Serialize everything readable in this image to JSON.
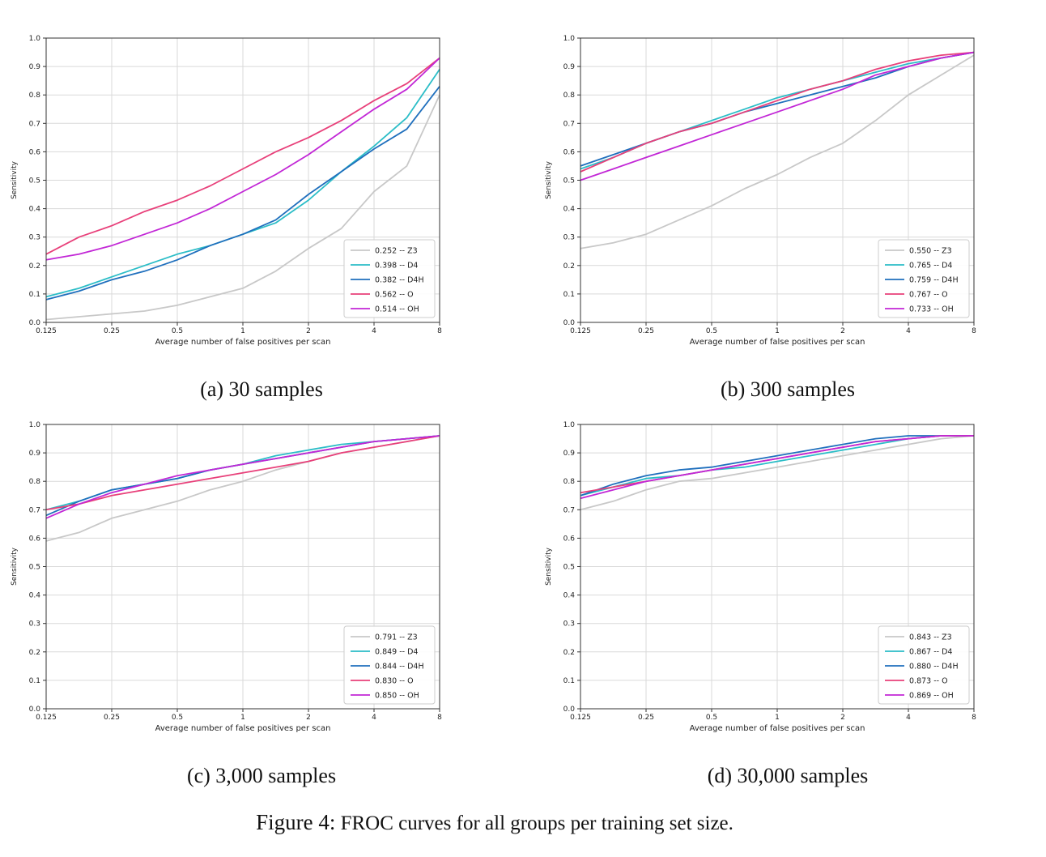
{
  "figure": {
    "caption_label": "Figure 4:",
    "caption_text": " FROC curves for all groups per training set size."
  },
  "chart_data": [
    {
      "panel_caption": "(a) 30 samples",
      "type": "line",
      "xlabel": "Average number of false positives per scan",
      "ylabel": "Sensitivity",
      "x_scale": "log2",
      "xlim": [
        0.125,
        8
      ],
      "ylim": [
        0.0,
        1.0
      ],
      "xticks": [
        "0.125",
        "0.25",
        "0.5",
        "1",
        "2",
        "4",
        "8"
      ],
      "yticks": [
        "0.0",
        "0.1",
        "0.2",
        "0.3",
        "0.4",
        "0.5",
        "0.6",
        "0.7",
        "0.8",
        "0.9",
        "1.0"
      ],
      "grid": true,
      "legend_position": "lower-right",
      "series": [
        {
          "name": "0.252 -- Z3",
          "color": "#c8c8c8",
          "x": [
            0.125,
            0.177,
            0.25,
            0.354,
            0.5,
            0.707,
            1,
            1.414,
            2,
            2.828,
            4,
            5.657,
            8
          ],
          "y": [
            0.01,
            0.02,
            0.03,
            0.04,
            0.06,
            0.09,
            0.12,
            0.18,
            0.26,
            0.33,
            0.46,
            0.55,
            0.8
          ]
        },
        {
          "name": "0.398 -- D4",
          "color": "#2bbdc7",
          "x": [
            0.125,
            0.177,
            0.25,
            0.354,
            0.5,
            0.707,
            1,
            1.414,
            2,
            2.828,
            4,
            5.657,
            8
          ],
          "y": [
            0.09,
            0.12,
            0.16,
            0.2,
            0.24,
            0.27,
            0.31,
            0.35,
            0.43,
            0.53,
            0.62,
            0.72,
            0.89
          ]
        },
        {
          "name": "0.382 -- D4H",
          "color": "#1f6fbd",
          "x": [
            0.125,
            0.177,
            0.25,
            0.354,
            0.5,
            0.707,
            1,
            1.414,
            2,
            2.828,
            4,
            5.657,
            8
          ],
          "y": [
            0.08,
            0.11,
            0.15,
            0.18,
            0.22,
            0.27,
            0.31,
            0.36,
            0.45,
            0.53,
            0.61,
            0.68,
            0.83
          ]
        },
        {
          "name": "0.562 -- O",
          "color": "#e8407a",
          "x": [
            0.125,
            0.177,
            0.25,
            0.354,
            0.5,
            0.707,
            1,
            1.414,
            2,
            2.828,
            4,
            5.657,
            8
          ],
          "y": [
            0.24,
            0.3,
            0.34,
            0.39,
            0.43,
            0.48,
            0.54,
            0.6,
            0.65,
            0.71,
            0.78,
            0.84,
            0.93
          ]
        },
        {
          "name": "0.514 -- OH",
          "color": "#c227d6",
          "x": [
            0.125,
            0.177,
            0.25,
            0.354,
            0.5,
            0.707,
            1,
            1.414,
            2,
            2.828,
            4,
            5.657,
            8
          ],
          "y": [
            0.22,
            0.24,
            0.27,
            0.31,
            0.35,
            0.4,
            0.46,
            0.52,
            0.59,
            0.67,
            0.75,
            0.82,
            0.93
          ]
        }
      ]
    },
    {
      "panel_caption": "(b) 300 samples",
      "type": "line",
      "xlabel": "Average number of false positives per scan",
      "ylabel": "Sensitivity",
      "x_scale": "log2",
      "xlim": [
        0.125,
        8
      ],
      "ylim": [
        0.0,
        1.0
      ],
      "xticks": [
        "0.125",
        "0.25",
        "0.5",
        "1",
        "2",
        "4",
        "8"
      ],
      "yticks": [
        "0.0",
        "0.1",
        "0.2",
        "0.3",
        "0.4",
        "0.5",
        "0.6",
        "0.7",
        "0.8",
        "0.9",
        "1.0"
      ],
      "grid": true,
      "legend_position": "lower-right",
      "series": [
        {
          "name": "0.550 -- Z3",
          "color": "#c8c8c8",
          "x": [
            0.125,
            0.177,
            0.25,
            0.354,
            0.5,
            0.707,
            1,
            1.414,
            2,
            2.828,
            4,
            5.657,
            8
          ],
          "y": [
            0.26,
            0.28,
            0.31,
            0.36,
            0.41,
            0.47,
            0.52,
            0.58,
            0.63,
            0.71,
            0.8,
            0.87,
            0.94
          ]
        },
        {
          "name": "0.765 -- D4",
          "color": "#2bbdc7",
          "x": [
            0.125,
            0.177,
            0.25,
            0.354,
            0.5,
            0.707,
            1,
            1.414,
            2,
            2.828,
            4,
            5.657,
            8
          ],
          "y": [
            0.54,
            0.58,
            0.63,
            0.67,
            0.71,
            0.75,
            0.79,
            0.82,
            0.85,
            0.88,
            0.91,
            0.93,
            0.95
          ]
        },
        {
          "name": "0.759 -- D4H",
          "color": "#1f6fbd",
          "x": [
            0.125,
            0.177,
            0.25,
            0.354,
            0.5,
            0.707,
            1,
            1.414,
            2,
            2.828,
            4,
            5.657,
            8
          ],
          "y": [
            0.55,
            0.59,
            0.63,
            0.67,
            0.7,
            0.74,
            0.77,
            0.8,
            0.83,
            0.86,
            0.9,
            0.93,
            0.95
          ]
        },
        {
          "name": "0.767 -- O",
          "color": "#e8407a",
          "x": [
            0.125,
            0.177,
            0.25,
            0.354,
            0.5,
            0.707,
            1,
            1.414,
            2,
            2.828,
            4,
            5.657,
            8
          ],
          "y": [
            0.53,
            0.58,
            0.63,
            0.67,
            0.7,
            0.74,
            0.78,
            0.82,
            0.85,
            0.89,
            0.92,
            0.94,
            0.95
          ]
        },
        {
          "name": "0.733 -- OH",
          "color": "#c227d6",
          "x": [
            0.125,
            0.177,
            0.25,
            0.354,
            0.5,
            0.707,
            1,
            1.414,
            2,
            2.828,
            4,
            5.657,
            8
          ],
          "y": [
            0.5,
            0.54,
            0.58,
            0.62,
            0.66,
            0.7,
            0.74,
            0.78,
            0.82,
            0.87,
            0.9,
            0.93,
            0.95
          ]
        }
      ]
    },
    {
      "panel_caption": "(c) 3,000 samples",
      "type": "line",
      "xlabel": "Average number of false positives per scan",
      "ylabel": "Sensitivity",
      "x_scale": "log2",
      "xlim": [
        0.125,
        8
      ],
      "ylim": [
        0.0,
        1.0
      ],
      "xticks": [
        "0.125",
        "0.25",
        "0.5",
        "1",
        "2",
        "4",
        "8"
      ],
      "yticks": [
        "0.0",
        "0.1",
        "0.2",
        "0.3",
        "0.4",
        "0.5",
        "0.6",
        "0.7",
        "0.8",
        "0.9",
        "1.0"
      ],
      "grid": true,
      "legend_position": "lower-right",
      "series": [
        {
          "name": "0.791 -- Z3",
          "color": "#c8c8c8",
          "x": [
            0.125,
            0.177,
            0.25,
            0.354,
            0.5,
            0.707,
            1,
            1.414,
            2,
            2.828,
            4,
            5.657,
            8
          ],
          "y": [
            0.59,
            0.62,
            0.67,
            0.7,
            0.73,
            0.77,
            0.8,
            0.84,
            0.87,
            0.9,
            0.92,
            0.94,
            0.96
          ]
        },
        {
          "name": "0.849 -- D4",
          "color": "#2bbdc7",
          "x": [
            0.125,
            0.177,
            0.25,
            0.354,
            0.5,
            0.707,
            1,
            1.414,
            2,
            2.828,
            4,
            5.657,
            8
          ],
          "y": [
            0.7,
            0.73,
            0.77,
            0.79,
            0.81,
            0.84,
            0.86,
            0.89,
            0.91,
            0.93,
            0.94,
            0.95,
            0.96
          ]
        },
        {
          "name": "0.844 -- D4H",
          "color": "#1f6fbd",
          "x": [
            0.125,
            0.177,
            0.25,
            0.354,
            0.5,
            0.707,
            1,
            1.414,
            2,
            2.828,
            4,
            5.657,
            8
          ],
          "y": [
            0.68,
            0.73,
            0.77,
            0.79,
            0.81,
            0.84,
            0.86,
            0.88,
            0.9,
            0.92,
            0.94,
            0.95,
            0.96
          ]
        },
        {
          "name": "0.830 -- O",
          "color": "#e8407a",
          "x": [
            0.125,
            0.177,
            0.25,
            0.354,
            0.5,
            0.707,
            1,
            1.414,
            2,
            2.828,
            4,
            5.657,
            8
          ],
          "y": [
            0.7,
            0.72,
            0.75,
            0.77,
            0.79,
            0.81,
            0.83,
            0.85,
            0.87,
            0.9,
            0.92,
            0.94,
            0.96
          ]
        },
        {
          "name": "0.850 -- OH",
          "color": "#c227d6",
          "x": [
            0.125,
            0.177,
            0.25,
            0.354,
            0.5,
            0.707,
            1,
            1.414,
            2,
            2.828,
            4,
            5.657,
            8
          ],
          "y": [
            0.67,
            0.72,
            0.76,
            0.79,
            0.82,
            0.84,
            0.86,
            0.88,
            0.9,
            0.92,
            0.94,
            0.95,
            0.96
          ]
        }
      ]
    },
    {
      "panel_caption": "(d) 30,000 samples",
      "type": "line",
      "xlabel": "Average number of false positives per scan",
      "ylabel": "Sensitivity",
      "x_scale": "log2",
      "xlim": [
        0.125,
        8
      ],
      "ylim": [
        0.0,
        1.0
      ],
      "xticks": [
        "0.125",
        "0.25",
        "0.5",
        "1",
        "2",
        "4",
        "8"
      ],
      "yticks": [
        "0.0",
        "0.1",
        "0.2",
        "0.3",
        "0.4",
        "0.5",
        "0.6",
        "0.7",
        "0.8",
        "0.9",
        "1.0"
      ],
      "grid": true,
      "legend_position": "lower-right",
      "series": [
        {
          "name": "0.843 -- Z3",
          "color": "#c8c8c8",
          "x": [
            0.125,
            0.177,
            0.25,
            0.354,
            0.5,
            0.707,
            1,
            1.414,
            2,
            2.828,
            4,
            5.657,
            8
          ],
          "y": [
            0.7,
            0.73,
            0.77,
            0.8,
            0.81,
            0.83,
            0.85,
            0.87,
            0.89,
            0.91,
            0.93,
            0.95,
            0.96
          ]
        },
        {
          "name": "0.867 -- D4",
          "color": "#2bbdc7",
          "x": [
            0.125,
            0.177,
            0.25,
            0.354,
            0.5,
            0.707,
            1,
            1.414,
            2,
            2.828,
            4,
            5.657,
            8
          ],
          "y": [
            0.75,
            0.78,
            0.81,
            0.82,
            0.84,
            0.85,
            0.87,
            0.89,
            0.91,
            0.93,
            0.95,
            0.96,
            0.96
          ]
        },
        {
          "name": "0.880 -- D4H",
          "color": "#1f6fbd",
          "x": [
            0.125,
            0.177,
            0.25,
            0.354,
            0.5,
            0.707,
            1,
            1.414,
            2,
            2.828,
            4,
            5.657,
            8
          ],
          "y": [
            0.75,
            0.79,
            0.82,
            0.84,
            0.85,
            0.87,
            0.89,
            0.91,
            0.93,
            0.95,
            0.96,
            0.96,
            0.96
          ]
        },
        {
          "name": "0.873 -- O",
          "color": "#e8407a",
          "x": [
            0.125,
            0.177,
            0.25,
            0.354,
            0.5,
            0.707,
            1,
            1.414,
            2,
            2.828,
            4,
            5.657,
            8
          ],
          "y": [
            0.76,
            0.78,
            0.8,
            0.82,
            0.84,
            0.86,
            0.88,
            0.9,
            0.92,
            0.94,
            0.95,
            0.96,
            0.96
          ]
        },
        {
          "name": "0.869 -- OH",
          "color": "#c227d6",
          "x": [
            0.125,
            0.177,
            0.25,
            0.354,
            0.5,
            0.707,
            1,
            1.414,
            2,
            2.828,
            4,
            5.657,
            8
          ],
          "y": [
            0.74,
            0.77,
            0.8,
            0.82,
            0.84,
            0.86,
            0.88,
            0.9,
            0.92,
            0.94,
            0.95,
            0.96,
            0.96
          ]
        }
      ]
    }
  ]
}
